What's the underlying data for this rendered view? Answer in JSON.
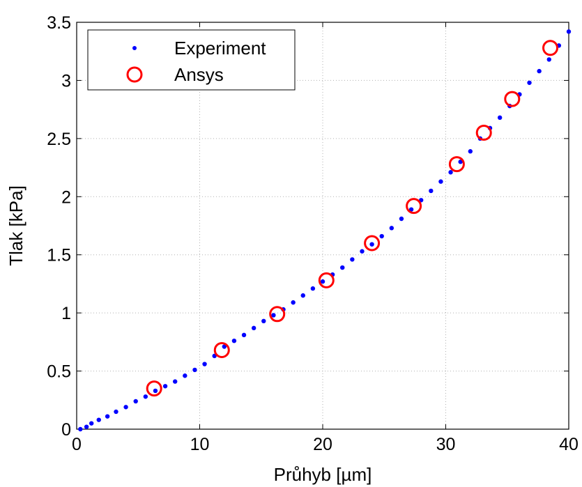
{
  "chart_data": {
    "type": "scatter",
    "xlabel": "Průhyb [µm]",
    "ylabel": "Tlak [kPa]",
    "xlim": [
      0,
      40
    ],
    "ylim": [
      0,
      3.5
    ],
    "x_ticks": [
      0,
      10,
      20,
      30,
      40
    ],
    "y_ticks": [
      0,
      0.5,
      1,
      1.5,
      2,
      2.5,
      3,
      3.5
    ],
    "x_tick_labels": [
      "0",
      "10",
      "20",
      "30",
      "40"
    ],
    "y_tick_labels": [
      "0",
      "0.5",
      "1",
      "1.5",
      "2",
      "2.5",
      "3",
      "3.5"
    ],
    "grid": true,
    "legend": {
      "placement": "top-left"
    },
    "series": [
      {
        "name": "Experiment",
        "marker": "dot",
        "color": "#0000ff",
        "x": [
          0.3,
          0.8,
          1.2,
          1.8,
          2.5,
          3.2,
          4.0,
          4.8,
          5.6,
          6.4,
          7.2,
          8.0,
          8.8,
          9.6,
          10.4,
          11.2,
          12.0,
          12.8,
          13.6,
          14.4,
          15.2,
          16.0,
          16.8,
          17.6,
          18.4,
          19.2,
          20.0,
          20.8,
          21.6,
          22.4,
          23.2,
          24.0,
          24.8,
          25.6,
          26.4,
          27.2,
          28.0,
          28.8,
          29.6,
          30.4,
          31.2,
          32.0,
          32.8,
          33.6,
          34.4,
          35.2,
          36.0,
          36.8,
          37.6,
          38.4,
          39.2,
          40.0
        ],
        "y": [
          0.0,
          0.02,
          0.05,
          0.08,
          0.11,
          0.15,
          0.19,
          0.24,
          0.28,
          0.33,
          0.37,
          0.41,
          0.46,
          0.51,
          0.56,
          0.63,
          0.71,
          0.76,
          0.81,
          0.87,
          0.93,
          0.98,
          1.03,
          1.09,
          1.15,
          1.21,
          1.27,
          1.33,
          1.39,
          1.46,
          1.53,
          1.59,
          1.66,
          1.73,
          1.81,
          1.89,
          1.97,
          2.05,
          2.13,
          2.21,
          2.3,
          2.39,
          2.5,
          2.59,
          2.68,
          2.78,
          2.88,
          2.98,
          3.08,
          3.18,
          3.3,
          3.42
        ]
      },
      {
        "name": "Ansys",
        "marker": "circle",
        "color": "#ff0000",
        "x": [
          6.3,
          11.8,
          16.3,
          20.3,
          24.0,
          27.4,
          30.9,
          33.1,
          35.4,
          38.5
        ],
        "y": [
          0.35,
          0.68,
          0.99,
          1.28,
          1.6,
          1.92,
          2.28,
          2.55,
          2.84,
          3.28
        ]
      }
    ]
  }
}
